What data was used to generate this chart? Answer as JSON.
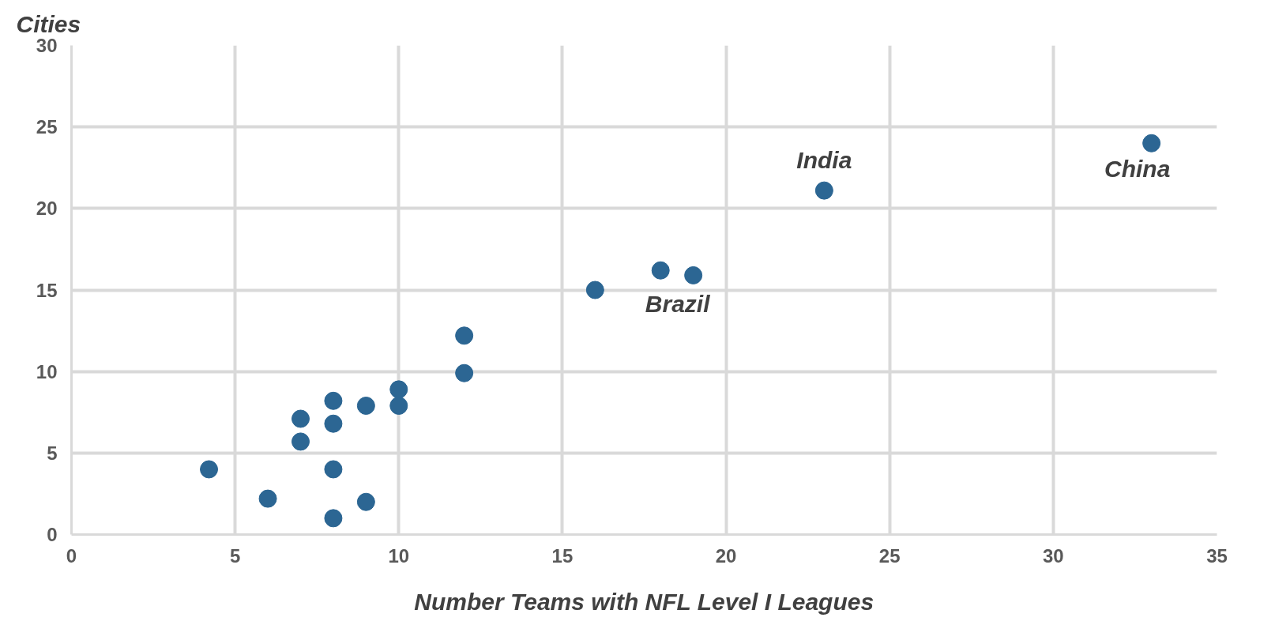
{
  "chart_data": {
    "type": "scatter",
    "xlabel": "Number Teams with NFL Level I Leagues",
    "ylabel": "Cities",
    "x": [
      4.2,
      6,
      7,
      7,
      8,
      8,
      8,
      8,
      9,
      9,
      10,
      10,
      12,
      12,
      16,
      18,
      19,
      23,
      33
    ],
    "series": [
      {
        "color": "#2c6693",
        "values": [
          4,
          2.2,
          7.1,
          5.7,
          8.2,
          6.8,
          4,
          1,
          7.9,
          2,
          8.9,
          7.9,
          12.2,
          9.9,
          15,
          16.2,
          15.9,
          21.1,
          24
        ]
      }
    ],
    "xlim": [
      0,
      35
    ],
    "ylim": [
      0,
      30
    ],
    "xticks": [
      0,
      5,
      10,
      15,
      20,
      25,
      30,
      35
    ],
    "yticks": [
      0,
      5,
      10,
      15,
      20,
      25,
      30
    ],
    "grid": true,
    "marker": "circle",
    "annotations": [
      {
        "text": "India",
        "x": 23,
        "y": 21.1
      },
      {
        "text": "Brazil",
        "x": 19,
        "y": 15.9
      },
      {
        "text": "China",
        "x": 33,
        "y": 24
      }
    ]
  }
}
